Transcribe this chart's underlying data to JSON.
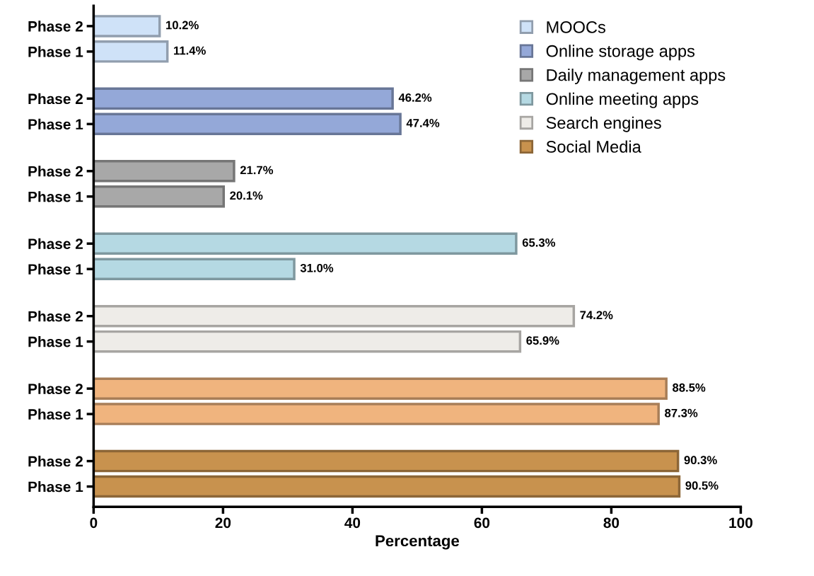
{
  "chart_data": {
    "type": "bar",
    "orientation": "horizontal",
    "xlabel": "Percentage",
    "categories": [
      "Phase 2",
      "Phase 1",
      "Phase 2",
      "Phase 1",
      "Phase 2",
      "Phase 1",
      "Phase 2",
      "Phase 1",
      "Phase 2",
      "Phase 1",
      "Phase 2",
      "Phase 1",
      "Phase 2",
      "Phase 1"
    ],
    "series": [
      {
        "name": "MOOCs",
        "color": "#cfe2f8",
        "values": [
          10.2,
          11.4,
          null,
          null,
          null,
          null,
          null,
          null,
          null,
          null,
          null,
          null,
          null,
          null
        ],
        "value_labels": [
          "10.2%",
          "11.4%",
          null,
          null,
          null,
          null,
          null,
          null,
          null,
          null,
          null,
          null,
          null,
          null
        ]
      },
      {
        "name": "Online storage apps",
        "color": "#94a8d8",
        "values": [
          null,
          null,
          46.2,
          47.4,
          null,
          null,
          null,
          null,
          null,
          null,
          null,
          null,
          null,
          null
        ],
        "value_labels": [
          null,
          null,
          "46.2%",
          "47.4%",
          null,
          null,
          null,
          null,
          null,
          null,
          null,
          null,
          null,
          null
        ]
      },
      {
        "name": "Daily management apps",
        "color": "#a8a8a8",
        "values": [
          null,
          null,
          null,
          null,
          21.7,
          20.1,
          null,
          null,
          null,
          null,
          null,
          null,
          null,
          null
        ],
        "value_labels": [
          null,
          null,
          null,
          null,
          "21.7%",
          "20.1%",
          null,
          null,
          null,
          null,
          null,
          null,
          null,
          null
        ]
      },
      {
        "name": "Online meeting apps",
        "color": "#b5d9e3",
        "values": [
          null,
          null,
          null,
          null,
          null,
          null,
          65.3,
          31.0,
          null,
          null,
          null,
          null,
          null,
          null
        ],
        "value_labels": [
          null,
          null,
          null,
          null,
          null,
          null,
          "65.3%",
          "31.0%",
          null,
          null,
          null,
          null,
          null,
          null
        ]
      },
      {
        "name": "Search engines",
        "color": "#eeece8",
        "values": [
          null,
          null,
          null,
          null,
          null,
          null,
          null,
          null,
          74.2,
          65.9,
          null,
          null,
          null,
          null
        ],
        "value_labels": [
          null,
          null,
          null,
          null,
          null,
          null,
          null,
          null,
          "74.2%",
          "65.9%",
          null,
          null,
          null,
          null
        ]
      },
      {
        "color": "#f0b47e",
        "values": [
          null,
          null,
          null,
          null,
          null,
          null,
          null,
          null,
          null,
          null,
          88.5,
          87.3,
          null,
          null
        ],
        "value_labels": [
          null,
          null,
          null,
          null,
          null,
          null,
          null,
          null,
          null,
          null,
          "88.5%",
          "87.3%",
          null,
          null
        ]
      },
      {
        "name": "Social Media",
        "color": "#c8924e",
        "values": [
          null,
          null,
          null,
          null,
          null,
          null,
          null,
          null,
          null,
          null,
          null,
          null,
          90.3,
          90.5
        ],
        "value_labels": [
          null,
          null,
          null,
          null,
          null,
          null,
          null,
          null,
          null,
          null,
          null,
          null,
          "90.3%",
          "90.5%"
        ]
      }
    ],
    "xlim": [
      0,
      100
    ],
    "xticks": [
      0,
      20,
      40,
      60,
      80,
      100
    ],
    "grid": false,
    "legend": "top right"
  }
}
